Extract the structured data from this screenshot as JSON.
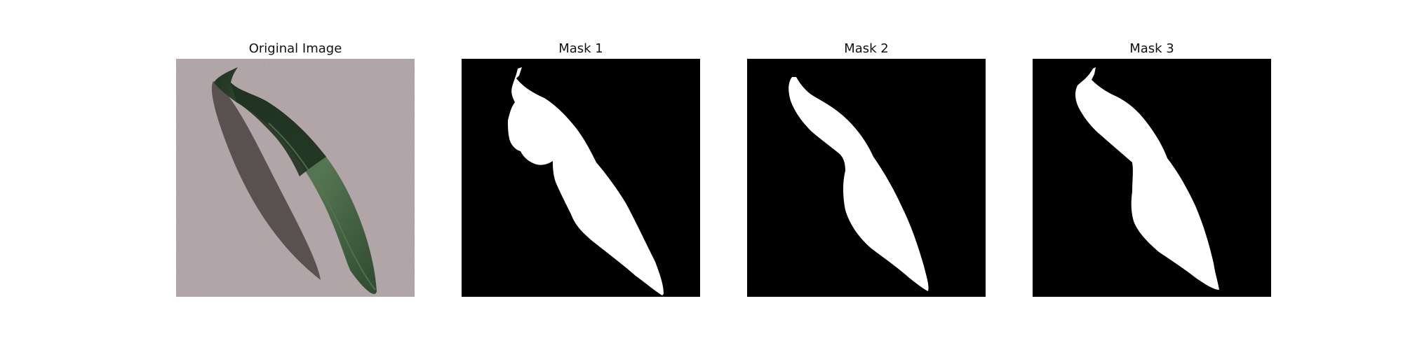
{
  "figure": {
    "panels": [
      {
        "title": "Original Image"
      },
      {
        "title": "Mask 1"
      },
      {
        "title": "Mask 2"
      },
      {
        "title": "Mask 3"
      }
    ]
  },
  "colors": {
    "background": "#ffffff",
    "surface": "#b8acaf",
    "leaf_dark": "#1f3120",
    "leaf_mid": "#2f4a2f",
    "leaf_light": "#557653",
    "shadow": "#4a4242",
    "mask_background": "#000000",
    "mask_foreground": "#ffffff"
  }
}
